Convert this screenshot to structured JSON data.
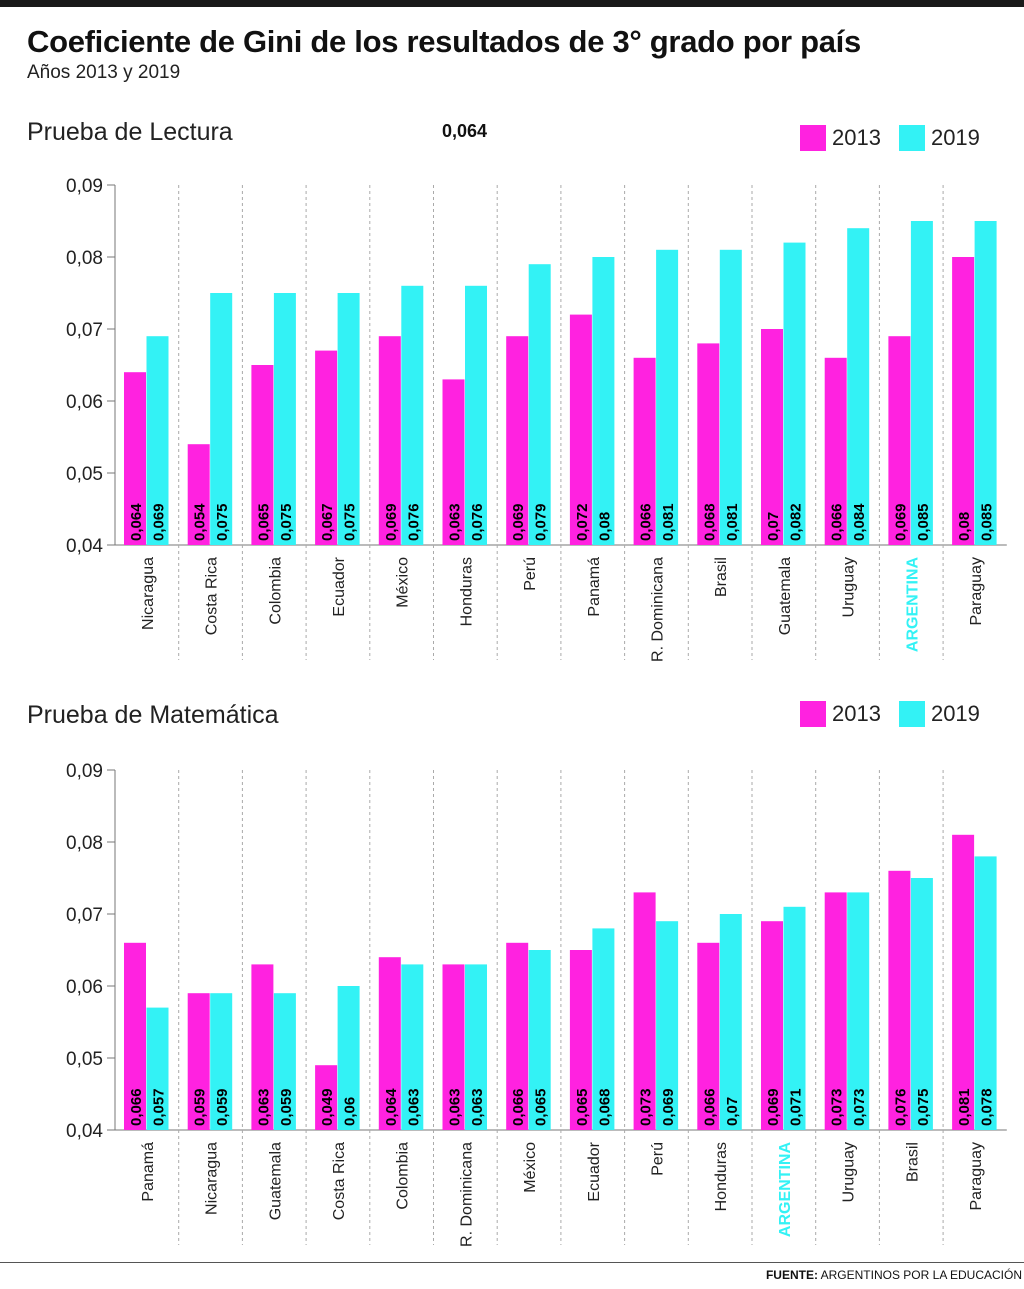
{
  "header": {
    "title": "Coeficiente de Gini de los resultados de 3° grado por país",
    "subtitle": "Años 2013 y 2019",
    "source_label": "FUENTE:",
    "source_text": "ARGENTINOS POR LA EDUCACIÓN"
  },
  "colors": {
    "s2013": "#ff22e0",
    "s2019": "#33f2f5",
    "highlight_label": "#33f2f5"
  },
  "reading": {
    "title": "Prueba de Lectura",
    "note": "0,064"
  },
  "math": {
    "title": "Prueba de Matemática"
  },
  "legend": {
    "s2013": "2013",
    "s2019": "2019"
  },
  "chart_data": [
    {
      "type": "bar",
      "title": "Prueba de Lectura",
      "categories": [
        "Nicaragua",
        "Costa Rica",
        "Colombia",
        "Ecuador",
        "México",
        "Honduras",
        "Perú",
        "Panamá",
        "R. Dominicana",
        "Brasil",
        "Guatemala",
        "Uruguay",
        "ARGENTINA",
        "Paraguay"
      ],
      "highlight": "ARGENTINA",
      "series": [
        {
          "name": "2013",
          "values": [
            0.064,
            0.054,
            0.065,
            0.067,
            0.069,
            0.063,
            0.069,
            0.072,
            0.066,
            0.068,
            0.07,
            0.066,
            0.069,
            0.08
          ],
          "labels": [
            "0,064",
            "0,054",
            "0,065",
            "0,067",
            "0,069",
            "0,063",
            "0,069",
            "0,072",
            "0,066",
            "0,068",
            "0,07",
            "0,066",
            "0,069",
            "0,08"
          ]
        },
        {
          "name": "2019",
          "values": [
            0.069,
            0.075,
            0.075,
            0.075,
            0.076,
            0.076,
            0.079,
            0.08,
            0.081,
            0.081,
            0.082,
            0.084,
            0.085,
            0.085
          ],
          "labels": [
            "0,069",
            "0,075",
            "0,075",
            "0,075",
            "0,076",
            "0,076",
            "0,079",
            "0,08",
            "0,081",
            "0,081",
            "0,082",
            "0,084",
            "0,085",
            "0,085"
          ]
        }
      ],
      "ylim": [
        0.04,
        0.09
      ],
      "yticks": [
        "0,04",
        "0,05",
        "0,06",
        "0,07",
        "0,08",
        "0,09"
      ],
      "grid": false,
      "legend_position": "top-right"
    },
    {
      "type": "bar",
      "title": "Prueba de Matemática",
      "categories": [
        "Panamá",
        "Nicaragua",
        "Guatemala",
        "Costa Rica",
        "Colombia",
        "R. Dominicana",
        "México",
        "Ecuador",
        "Perú",
        "Honduras",
        "ARGENTINA",
        "Uruguay",
        "Brasil",
        "Paraguay"
      ],
      "highlight": "ARGENTINA",
      "series": [
        {
          "name": "2013",
          "values": [
            0.066,
            0.059,
            0.063,
            0.049,
            0.064,
            0.063,
            0.066,
            0.065,
            0.073,
            0.066,
            0.069,
            0.073,
            0.076,
            0.081
          ],
          "labels": [
            "0,066",
            "0,059",
            "0,063",
            "0,049",
            "0,064",
            "0,063",
            "0,066",
            "0,065",
            "0,073",
            "0,066",
            "0,069",
            "0,073",
            "0,076",
            "0,081"
          ]
        },
        {
          "name": "2019",
          "values": [
            0.057,
            0.059,
            0.059,
            0.06,
            0.063,
            0.063,
            0.065,
            0.068,
            0.069,
            0.07,
            0.071,
            0.073,
            0.075,
            0.078
          ],
          "labels": [
            "0,057",
            "0,059",
            "0,059",
            "0,06",
            "0,063",
            "0,063",
            "0,065",
            "0,068",
            "0,069",
            "0,07",
            "0,071",
            "0,073",
            "0,075",
            "0,078"
          ]
        }
      ],
      "ylim": [
        0.04,
        0.09
      ],
      "yticks": [
        "0,04",
        "0,05",
        "0,06",
        "0,07",
        "0,08",
        "0,09"
      ],
      "grid": false,
      "legend_position": "top-right"
    }
  ]
}
